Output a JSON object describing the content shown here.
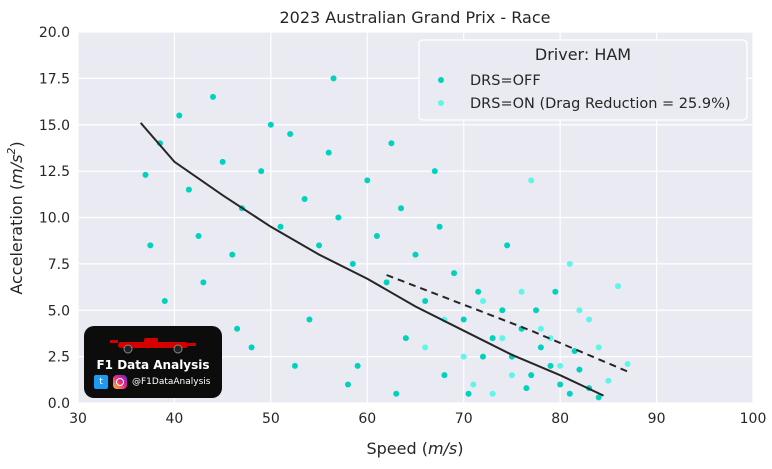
{
  "chart_data": {
    "type": "scatter",
    "title": "2023 Australian Grand Prix - Race",
    "xlabel_prefix": "Speed (",
    "xlabel_unit": "m/s",
    "xlabel_suffix": ")",
    "ylabel_prefix": "Acceleration (",
    "ylabel_unit": "m/s",
    "ylabel_exp": "2",
    "ylabel_suffix": ")",
    "xlim": [
      30,
      100
    ],
    "ylim": [
      0,
      20
    ],
    "x_ticks": [
      "30",
      "40",
      "50",
      "60",
      "70",
      "80",
      "90",
      "100"
    ],
    "y_ticks": [
      "0.0",
      "2.5",
      "5.0",
      "7.5",
      "10.0",
      "12.5",
      "15.0",
      "17.5",
      "20.0"
    ],
    "grid": true,
    "legend": {
      "title": "Driver: HAM",
      "placement": "top-right",
      "entries": [
        "DRS=OFF",
        "DRS=ON (Drag Reduction = 25.9%)"
      ]
    },
    "series": [
      {
        "name": "DRS=OFF",
        "color": "#00d2be",
        "kind": "scatter",
        "x": [
          37.0,
          37.5,
          38.5,
          40.5,
          41.5,
          42.5,
          45.0,
          46.0,
          47.0,
          49.0,
          51.0,
          52.0,
          53.5,
          55.0,
          56.0,
          57.0,
          58.5,
          60.0,
          61.0,
          62.0,
          63.5,
          65.0,
          66.0,
          67.5,
          69.0,
          70.0,
          71.5,
          73.0,
          74.0,
          75.0,
          76.0,
          77.0,
          78.0,
          79.0,
          80.0,
          81.0,
          82.0,
          83.0,
          84.0,
          39.0,
          43.0,
          48.0,
          54.0,
          59.0,
          64.0,
          68.0,
          72.0,
          77.5,
          81.5,
          44.0,
          50.0,
          56.5,
          62.5,
          67.0,
          74.5,
          79.5,
          46.5,
          52.5,
          58.0,
          63.0,
          70.5,
          76.5
        ],
        "y": [
          12.3,
          8.5,
          14.0,
          15.5,
          11.5,
          9.0,
          13.0,
          8.0,
          10.5,
          12.5,
          9.5,
          14.5,
          11.0,
          8.5,
          13.5,
          10.0,
          7.5,
          12.0,
          9.0,
          6.5,
          10.5,
          8.0,
          5.5,
          9.5,
          7.0,
          4.5,
          6.0,
          3.5,
          5.0,
          2.5,
          4.0,
          1.5,
          3.0,
          2.0,
          1.0,
          0.5,
          1.8,
          0.8,
          0.3,
          5.5,
          6.5,
          3.0,
          4.5,
          2.0,
          3.5,
          1.5,
          2.5,
          5.0,
          2.8,
          16.5,
          15.0,
          17.5,
          14.0,
          12.5,
          8.5,
          6.0,
          4.0,
          2.0,
          1.0,
          0.5,
          0.5,
          0.8
        ]
      },
      {
        "name": "DRS=ON (Drag Reduction = 25.9%)",
        "color": "#5ff5e8",
        "kind": "scatter",
        "x": [
          66.0,
          68.0,
          70.0,
          72.0,
          74.0,
          76.0,
          78.0,
          80.0,
          82.0,
          84.0,
          86.0,
          87.0,
          71.0,
          75.0,
          79.0,
          83.0,
          77.0,
          81.0,
          73.0,
          85.0
        ],
        "y": [
          3.0,
          4.5,
          2.5,
          5.5,
          3.5,
          6.0,
          4.0,
          2.0,
          5.0,
          3.0,
          6.3,
          2.1,
          1.0,
          1.5,
          3.5,
          4.5,
          12.0,
          7.5,
          0.5,
          1.2
        ]
      },
      {
        "name": "DRS=OFF fit",
        "color": "#262626",
        "kind": "line",
        "x": [
          36.5,
          40,
          45,
          50,
          55,
          60,
          65,
          70,
          75,
          80,
          84.5
        ],
        "y": [
          15.1,
          13.0,
          11.2,
          9.5,
          8.0,
          6.7,
          5.2,
          3.9,
          2.6,
          1.5,
          0.4
        ]
      },
      {
        "name": "DRS=ON fit",
        "color": "#262626",
        "kind": "dashed-line",
        "x": [
          62,
          67,
          72,
          77,
          82,
          87
        ],
        "y": [
          6.9,
          5.9,
          4.9,
          3.9,
          2.8,
          1.7
        ]
      }
    ]
  },
  "watermark": {
    "logo_text": "F1 Data Analysis",
    "handle": "@F1DataAnalysis"
  }
}
